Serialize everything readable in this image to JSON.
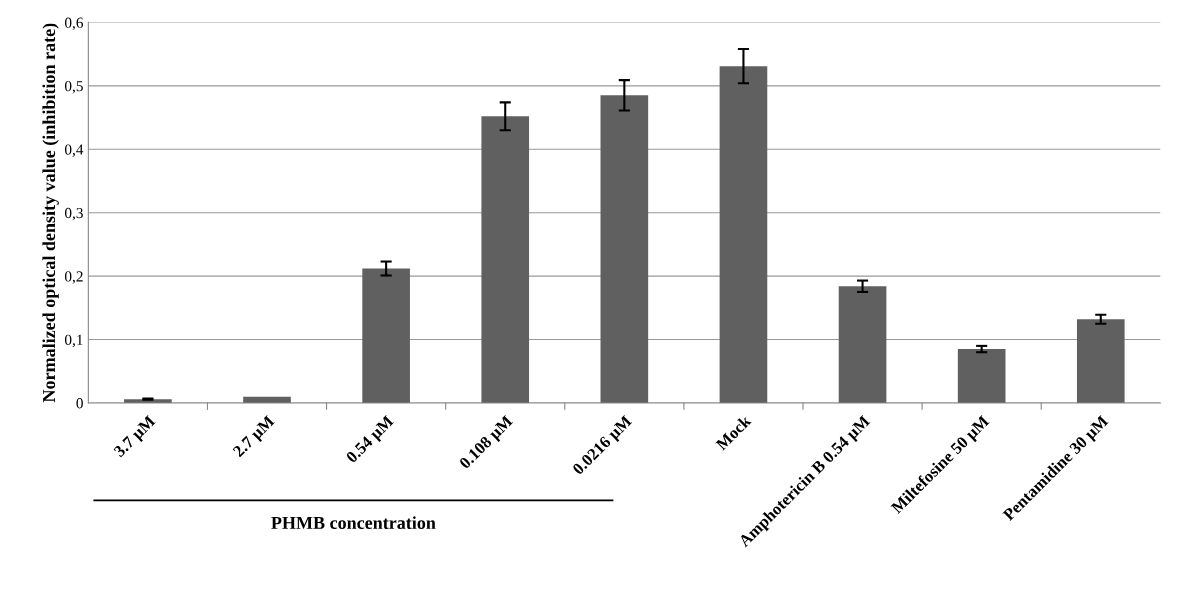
{
  "chart_data": {
    "type": "bar",
    "ylabel": "Normalized optical density value (inhibition rate)",
    "categories": [
      "3.7 µM",
      "2.7 µM",
      "0.54 µM",
      "0.108 µM",
      "0.0216 µM",
      "Mock",
      "Amphotericin B 0.54 µM",
      "Miltefosine 50 µM",
      "Pentamidine 30 µM"
    ],
    "values": [
      0.006,
      0.01,
      0.212,
      0.452,
      0.485,
      0.531,
      0.184,
      0.085,
      0.132
    ],
    "errors": [
      0.001,
      null,
      0.011,
      0.022,
      0.024,
      0.027,
      0.009,
      0.005,
      0.007
    ],
    "color": "#606060",
    "ylim": [
      0,
      0.6
    ],
    "yticks": [
      0,
      {
        "value": 0.1,
        "label": "0,1"
      },
      {
        "value": 0.2,
        "label": "0,2"
      },
      {
        "value": 0.3,
        "label": "0,3"
      },
      {
        "value": 0.4,
        "label": "0,4"
      },
      {
        "value": 0.5,
        "label": "0,5"
      },
      {
        "value": 0.6,
        "label": "0,6"
      }
    ],
    "grid": "y",
    "annotations": [
      "PHMB concentration"
    ]
  }
}
